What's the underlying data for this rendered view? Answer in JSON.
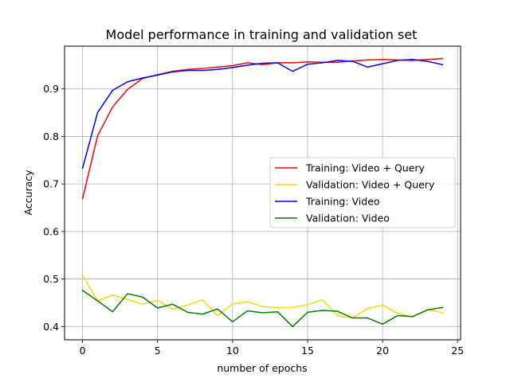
{
  "chart_data": {
    "type": "line",
    "title": "Model performance in training and validation set",
    "xlabel": "number of epochs",
    "ylabel": "Accuracy",
    "xlim": [
      -1.2,
      25.2
    ],
    "ylim": [
      0.372,
      0.99
    ],
    "xticks": [
      0,
      5,
      10,
      15,
      20,
      25
    ],
    "yticks": [
      0.4,
      0.5,
      0.6,
      0.7,
      0.8,
      0.9
    ],
    "grid": true,
    "legend_position": "center-right",
    "x": [
      0,
      1,
      2,
      3,
      4,
      5,
      6,
      7,
      8,
      9,
      10,
      11,
      12,
      13,
      14,
      15,
      16,
      17,
      18,
      19,
      20,
      21,
      22,
      23,
      24
    ],
    "series": [
      {
        "name": "Training: Video + Query",
        "color": "#ff0000",
        "values": [
          0.669,
          0.801,
          0.862,
          0.899,
          0.922,
          0.93,
          0.937,
          0.941,
          0.943,
          0.946,
          0.949,
          0.955,
          0.951,
          0.955,
          0.955,
          0.957,
          0.956,
          0.956,
          0.959,
          0.961,
          0.962,
          0.961,
          0.96,
          0.962,
          0.964
        ]
      },
      {
        "name": "Validation: Video + Query",
        "color": "#ffd700",
        "values": [
          0.508,
          0.454,
          0.466,
          0.457,
          0.447,
          0.455,
          0.436,
          0.445,
          0.456,
          0.423,
          0.448,
          0.452,
          0.442,
          0.44,
          0.44,
          0.446,
          0.456,
          0.423,
          0.418,
          0.438,
          0.445,
          0.428,
          0.42,
          0.436,
          0.429
        ]
      },
      {
        "name": "Training: Video",
        "color": "#0000ff",
        "values": [
          0.733,
          0.85,
          0.897,
          0.915,
          0.923,
          0.929,
          0.936,
          0.939,
          0.939,
          0.941,
          0.945,
          0.95,
          0.954,
          0.955,
          0.937,
          0.952,
          0.955,
          0.96,
          0.958,
          0.946,
          0.953,
          0.96,
          0.962,
          0.958,
          0.951
        ]
      },
      {
        "name": "Validation: Video",
        "color": "#008000",
        "values": [
          0.476,
          0.454,
          0.431,
          0.469,
          0.462,
          0.439,
          0.447,
          0.43,
          0.426,
          0.437,
          0.41,
          0.433,
          0.429,
          0.431,
          0.4,
          0.43,
          0.434,
          0.432,
          0.418,
          0.418,
          0.405,
          0.423,
          0.421,
          0.435,
          0.44
        ]
      }
    ]
  }
}
